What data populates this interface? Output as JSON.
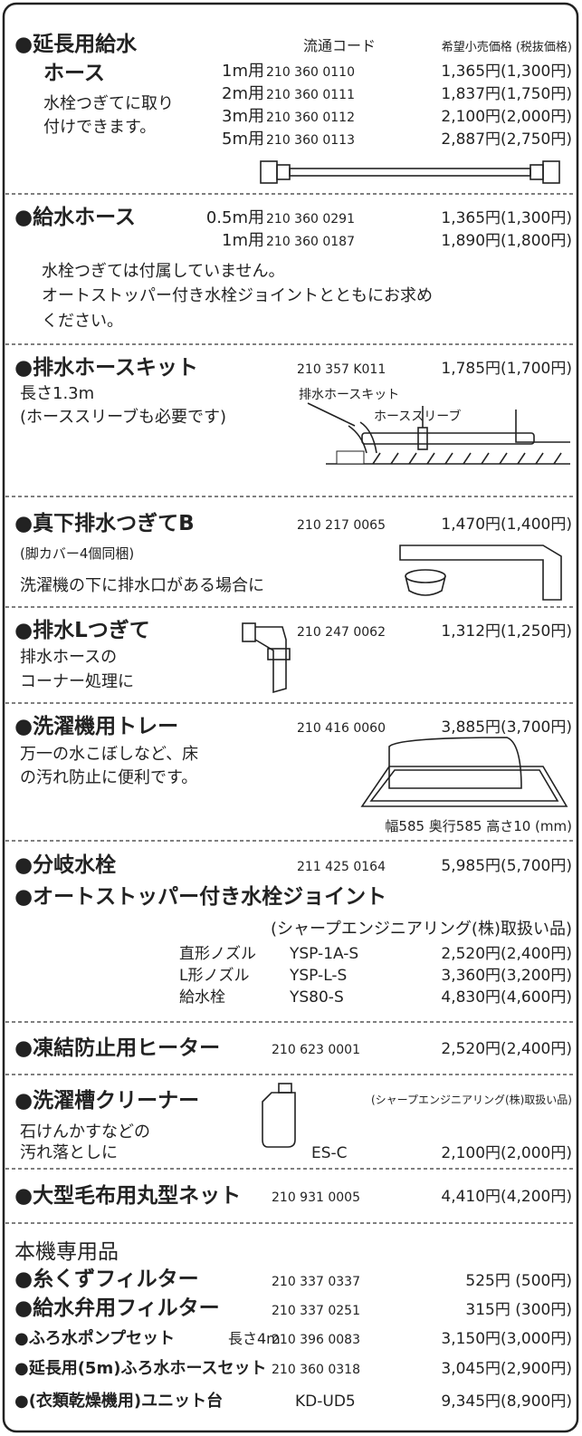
{
  "sections": [
    {
      "title_lines": [
        "●延長用給水",
        "ホース"
      ],
      "code_header": "流通コード",
      "price_header": "希望小売価格 (税抜価格)",
      "description": [
        "水栓つぎてに取り",
        "付けできます。"
      ],
      "items": [
        {
          "label": "1m用",
          "code": "210 360 0110",
          "price": "1,365円(1,300円)"
        },
        {
          "label": "2m用",
          "code": "210 360 0111",
          "price": "1,837円(1,750円)"
        },
        {
          "label": "3m用",
          "code": "210 360 0112",
          "price": "2,100円(2,000円)"
        },
        {
          "label": "5m用",
          "code": "210 360 0113",
          "price": "2,887円(2,750円)"
        }
      ]
    },
    {
      "title": "●給水ホース",
      "items": [
        {
          "label": "0.5m用",
          "code": "210 360 0291",
          "price": "1,365円(1,300円)"
        },
        {
          "label": "1m用",
          "code": "210 360 0187",
          "price": "1,890円(1,800円)"
        }
      ],
      "description": [
        "水栓つぎては付属していません。",
        "オートストッパー付き水栓ジョイントとともにお求め",
        "ください。"
      ]
    },
    {
      "title": "●排水ホースキット",
      "code": "210 357 K011",
      "price": "1,785円(1,700円)",
      "description": [
        "長さ1.3m",
        "(ホーススリーブも必要です)"
      ],
      "figure_labels": [
        "排水ホースキット",
        "ホーススリーブ"
      ]
    },
    {
      "title": "●真下排水つぎてB",
      "code": "210 217 0065",
      "price": "1,470円(1,400円)",
      "description": [
        "(脚カバー4個同梱)",
        "洗濯機の下に排水口がある場合に"
      ]
    },
    {
      "title": "●排水Lつぎて",
      "code": "210 247 0062",
      "price": "1,312円(1,250円)",
      "description": [
        "排水ホースの",
        "コーナー処理に"
      ]
    },
    {
      "title": "●洗濯機用トレー",
      "code": "210 416 0060",
      "price": "3,885円(3,700円)",
      "description": [
        "万一の水こぼしなど、床",
        "の汚れ防止に便利です。"
      ],
      "note": "幅585 奥行585 高さ10 (mm)"
    },
    {
      "title": "●分岐水栓",
      "code": "211 425 0164",
      "price": "5,985円(5,700円)",
      "subtitle": "●オートストッパー付き水栓ジョイント",
      "note": "(シャープエンジニアリング(株)取扱い品)",
      "items": [
        {
          "label": "直形ノズル",
          "code": "YSP-1A-S",
          "price": "2,520円(2,400円)"
        },
        {
          "label": "L形ノズル",
          "code": "YSP-L-S",
          "price": "3,360円(3,200円)"
        },
        {
          "label": "給水栓",
          "code": "YS80-S",
          "price": "4,830円(4,600円)"
        }
      ]
    },
    {
      "title": "●凍結防止用ヒーター",
      "code": "210 623 0001",
      "price": "2,520円(2,400円)"
    },
    {
      "title": "●洗濯槽クリーナー",
      "note": "(シャープエンジニアリング(株)取扱い品)",
      "description": [
        "石けんかすなどの",
        "汚れ落としに"
      ],
      "code": "ES-C",
      "price": "2,100円(2,000円)"
    },
    {
      "title": "●大型毛布用丸型ネット",
      "code": "210 931 0005",
      "price": "4,410円(4,200円)"
    },
    {
      "heading": "本機専用品",
      "items": [
        {
          "label": "●糸くずフィルター",
          "code": "210 337 0337",
          "price": "525円 (500円)"
        },
        {
          "label": "●給水弁用フィルター",
          "code": "210 337 0251",
          "price": "315円 (300円)"
        },
        {
          "label": "●ふろ水ポンプセット",
          "extra": "長さ4m",
          "code": "210 396 0083",
          "price": "3,150円(3,000円)"
        },
        {
          "label": "●延長用(5m)ふろ水ホースセット",
          "code": "210 360 0318",
          "price": "3,045円(2,900円)"
        },
        {
          "label": "●(衣類乾燥機用)ユニット台",
          "code": "KD-UD5",
          "price": "9,345円(8,900円)"
        }
      ]
    }
  ]
}
